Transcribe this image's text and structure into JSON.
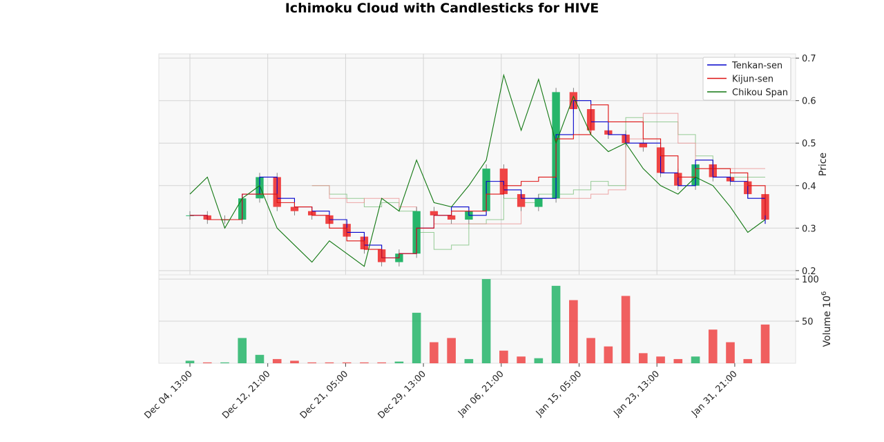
{
  "chart_data": {
    "type": "candlestick",
    "title": "Ichimoku Cloud with Candlesticks for HIVE",
    "price_panel": {
      "ylabel": "Price",
      "ylim": [
        0.19,
        0.71
      ],
      "yticks": [
        "0.2",
        "0.3",
        "0.4",
        "0.5",
        "0.6",
        "0.7"
      ],
      "grid": true,
      "legend_position": "top-right",
      "series": [
        {
          "name": "Tenkan-sen",
          "color": "#0000cc",
          "y": [
            0.33,
            0.32,
            0.32,
            0.38,
            0.42,
            0.37,
            0.35,
            0.34,
            0.32,
            0.29,
            0.26,
            0.23,
            0.24,
            0.3,
            0.33,
            0.35,
            0.33,
            0.41,
            0.39,
            0.37,
            0.37,
            0.52,
            0.6,
            0.55,
            0.52,
            0.5,
            0.5,
            0.43,
            0.4,
            0.46,
            0.42,
            0.41,
            0.37,
            0.31
          ]
        },
        {
          "name": "Kijun-sen",
          "color": "#dd1111",
          "y": [
            0.33,
            0.32,
            0.32,
            0.38,
            0.38,
            0.36,
            0.35,
            0.33,
            0.3,
            0.27,
            0.25,
            0.23,
            0.24,
            0.3,
            0.33,
            0.34,
            0.34,
            0.38,
            0.4,
            0.41,
            0.42,
            0.51,
            0.52,
            0.59,
            0.55,
            0.55,
            0.51,
            0.47,
            0.42,
            0.44,
            0.44,
            0.43,
            0.4,
            0.33
          ]
        },
        {
          "name": "Chikou Span",
          "color": "#117711",
          "y": [
            0.38,
            0.42,
            0.3,
            0.37,
            0.4,
            0.3,
            0.26,
            0.22,
            0.27,
            0.24,
            0.21,
            0.37,
            0.34,
            0.46,
            0.36,
            0.35,
            0.4,
            0.46,
            0.66,
            0.53,
            0.65,
            0.5,
            0.61,
            0.52,
            0.48,
            0.5,
            0.44,
            0.4,
            0.38,
            0.42,
            0.4,
            0.35,
            0.29,
            0.32
          ]
        }
      ],
      "cloud": {
        "span_a": [
          null,
          null,
          null,
          null,
          null,
          null,
          null,
          0.4,
          0.38,
          0.37,
          0.35,
          0.36,
          0.34,
          0.29,
          0.25,
          0.26,
          0.31,
          0.32,
          0.37,
          0.36,
          0.38,
          0.38,
          0.39,
          0.41,
          0.4,
          0.56,
          0.55,
          0.55,
          0.52,
          0.47,
          0.44,
          0.42,
          0.42,
          0.42
        ],
        "span_b": [
          null,
          null,
          null,
          null,
          null,
          null,
          null,
          0.4,
          0.37,
          0.36,
          0.37,
          0.37,
          0.35,
          0.3,
          0.31,
          0.31,
          0.31,
          0.31,
          0.31,
          0.37,
          0.37,
          0.37,
          0.37,
          0.38,
          0.39,
          0.51,
          0.57,
          0.57,
          0.5,
          0.46,
          0.44,
          0.44,
          0.44,
          0.44
        ],
        "span_a_color": "#7dbf7d",
        "span_b_color": "#e89090"
      },
      "candles_close": [
        0.33,
        0.32,
        0.32,
        0.37,
        0.42,
        0.35,
        0.34,
        0.33,
        0.31,
        0.28,
        0.25,
        0.22,
        0.24,
        0.34,
        0.33,
        0.32,
        0.34,
        0.44,
        0.38,
        0.35,
        0.37,
        0.62,
        0.58,
        0.53,
        0.52,
        0.5,
        0.49,
        0.43,
        0.4,
        0.45,
        0.42,
        0.41,
        0.38,
        0.32
      ]
    },
    "volume_panel": {
      "ylabel": "Volume  10^6",
      "ylim": [
        0,
        105
      ],
      "yticks": [
        "50",
        "100"
      ],
      "values": [
        3,
        1,
        1,
        30,
        10,
        5,
        3,
        1,
        1,
        1,
        1,
        1,
        2,
        60,
        25,
        30,
        5,
        100,
        15,
        8,
        6,
        92,
        75,
        30,
        20,
        80,
        12,
        8,
        5,
        8,
        40,
        25,
        5,
        46
      ],
      "colors": [
        "#ef4444",
        "#26b56a"
      ]
    },
    "x_tick_labels": [
      "Dec 04, 13:00",
      "Dec 12, 21:00",
      "Dec 21, 05:00",
      "Dec 29, 13:00",
      "Jan 06, 21:00",
      "Jan 15, 05:00",
      "Jan 23, 13:00",
      "Jan 31, 21:00"
    ]
  }
}
